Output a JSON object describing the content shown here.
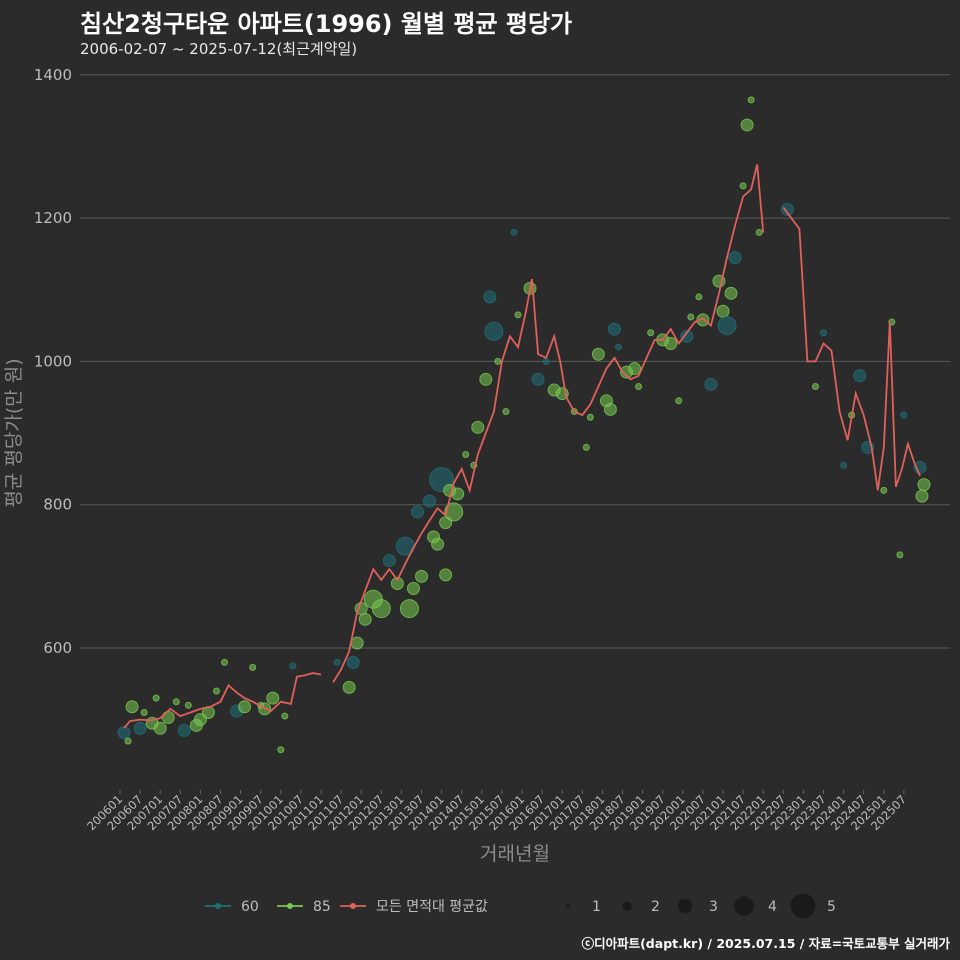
{
  "title": "침산2청구타운 아파트(1996) 월별 평균 평당가",
  "subtitle": "2006-02-07 ~ 2025-07-12(최근계약일)",
  "caption": "ⓒ디아파트(dapt.kr) / 2025.07.15 / 자료=국토교통부 실거래가",
  "colors": {
    "background": "#2b2b2b",
    "grid": "#5a5a5a",
    "series_60": "#1f6f78",
    "series_85": "#78c850",
    "series_avg": "#e0605a",
    "size_legend": "#1a1a1a"
  },
  "chart_data": {
    "type": "line",
    "xlabel": "거래년월",
    "ylabel": "평균 평당가(만 원)",
    "ylim": [
      400,
      1400
    ],
    "yticks": [
      600,
      800,
      1000,
      1200,
      1400
    ],
    "xlim": [
      2006.0,
      2025.6
    ],
    "xticks": [
      "200601",
      "200607",
      "200701",
      "200707",
      "200801",
      "200807",
      "200901",
      "200907",
      "201001",
      "201007",
      "201101",
      "201107",
      "201201",
      "201207",
      "201301",
      "201307",
      "201401",
      "201407",
      "201501",
      "201507",
      "201601",
      "201607",
      "201701",
      "201707",
      "201801",
      "201807",
      "201901",
      "201907",
      "202001",
      "202007",
      "202101",
      "202107",
      "202201",
      "202207",
      "202301",
      "202307",
      "202401",
      "202407",
      "202501",
      "202507"
    ],
    "legend": {
      "series": [
        {
          "label": "60",
          "color": "#1f6f78"
        },
        {
          "label": "85",
          "color": "#78c850"
        },
        {
          "label": "모든 면적대 평균값",
          "color": "#e0605a"
        }
      ],
      "sizes": [
        "1",
        "2",
        "3",
        "4",
        "5"
      ]
    },
    "avg_line": [
      [
        [
          2006.1,
          488
        ],
        [
          2006.25,
          498
        ],
        [
          2006.5,
          500
        ],
        [
          2006.75,
          499
        ],
        [
          2007.0,
          502
        ],
        [
          2007.25,
          515
        ],
        [
          2007.5,
          505
        ],
        [
          2007.75,
          510
        ],
        [
          2008.0,
          515
        ],
        [
          2008.25,
          518
        ],
        [
          2008.5,
          525
        ],
        [
          2008.7,
          548
        ],
        [
          2008.9,
          538
        ],
        [
          2009.1,
          530
        ],
        [
          2009.3,
          525
        ],
        [
          2009.5,
          519
        ],
        [
          2009.75,
          512
        ],
        [
          2010.0,
          525
        ],
        [
          2010.25,
          522
        ],
        [
          2010.4,
          560
        ],
        [
          2010.6,
          562
        ],
        [
          2010.8,
          565
        ],
        [
          2011.0,
          563
        ]
      ],
      [
        [
          2011.3,
          552
        ],
        [
          2011.5,
          570
        ],
        [
          2011.7,
          595
        ],
        [
          2011.9,
          650
        ],
        [
          2012.1,
          680
        ],
        [
          2012.3,
          710
        ],
        [
          2012.5,
          695
        ],
        [
          2012.7,
          710
        ],
        [
          2012.9,
          695
        ],
        [
          2013.1,
          718
        ],
        [
          2013.3,
          740
        ],
        [
          2013.5,
          760
        ],
        [
          2013.7,
          778
        ],
        [
          2013.9,
          795
        ],
        [
          2014.1,
          785
        ],
        [
          2014.3,
          830
        ],
        [
          2014.5,
          850
        ],
        [
          2014.7,
          820
        ],
        [
          2014.9,
          870
        ],
        [
          2015.1,
          900
        ],
        [
          2015.3,
          930
        ],
        [
          2015.5,
          1000
        ],
        [
          2015.7,
          1035
        ],
        [
          2015.9,
          1020
        ],
        [
          2016.1,
          1070
        ],
        [
          2016.25,
          1115
        ],
        [
          2016.4,
          1010
        ],
        [
          2016.6,
          1005
        ],
        [
          2016.8,
          1035
        ],
        [
          2016.95,
          1000
        ],
        [
          2017.1,
          950
        ],
        [
          2017.3,
          930
        ],
        [
          2017.5,
          925
        ],
        [
          2017.7,
          940
        ],
        [
          2017.9,
          965
        ],
        [
          2018.1,
          990
        ],
        [
          2018.3,
          1005
        ],
        [
          2018.5,
          985
        ],
        [
          2018.7,
          975
        ],
        [
          2018.9,
          980
        ],
        [
          2019.1,
          1005
        ],
        [
          2019.3,
          1030
        ],
        [
          2019.5,
          1030
        ],
        [
          2019.7,
          1045
        ],
        [
          2019.9,
          1025
        ],
        [
          2020.1,
          1040
        ],
        [
          2020.3,
          1055
        ],
        [
          2020.5,
          1060
        ],
        [
          2020.7,
          1050
        ],
        [
          2020.9,
          1095
        ],
        [
          2021.1,
          1145
        ],
        [
          2021.3,
          1190
        ],
        [
          2021.5,
          1230
        ],
        [
          2021.7,
          1240
        ],
        [
          2021.85,
          1275
        ],
        [
          2022.0,
          1180
        ]
      ],
      [
        [
          2022.5,
          1215
        ],
        [
          2022.7,
          1200
        ],
        [
          2022.9,
          1185
        ],
        [
          2023.1,
          1000
        ],
        [
          2023.3,
          1000
        ],
        [
          2023.5,
          1025
        ],
        [
          2023.7,
          1015
        ],
        [
          2023.9,
          930
        ],
        [
          2024.1,
          890
        ],
        [
          2024.3,
          955
        ],
        [
          2024.5,
          925
        ],
        [
          2024.7,
          880
        ],
        [
          2024.85,
          820
        ],
        [
          2025.0,
          880
        ],
        [
          2025.15,
          1055
        ],
        [
          2025.3,
          825
        ],
        [
          2025.45,
          850
        ],
        [
          2025.6,
          885
        ],
        [
          2025.75,
          860
        ],
        [
          2025.9,
          840
        ]
      ]
    ],
    "points": [
      [
        2006.1,
        482,
        2,
        "60"
      ],
      [
        2006.2,
        470,
        1,
        "85"
      ],
      [
        2006.3,
        518,
        2,
        "85"
      ],
      [
        2006.5,
        488,
        2,
        "60"
      ],
      [
        2006.6,
        510,
        1,
        "85"
      ],
      [
        2006.8,
        495,
        2,
        "85"
      ],
      [
        2006.9,
        530,
        1,
        "85"
      ],
      [
        2007.0,
        488,
        2,
        "85"
      ],
      [
        2007.2,
        503,
        2,
        "85"
      ],
      [
        2007.4,
        525,
        1,
        "85"
      ],
      [
        2007.6,
        485,
        2,
        "60"
      ],
      [
        2007.7,
        520,
        1,
        "85"
      ],
      [
        2007.9,
        492,
        2,
        "85"
      ],
      [
        2008.0,
        500,
        2,
        "85"
      ],
      [
        2008.2,
        510,
        2,
        "85"
      ],
      [
        2008.4,
        540,
        1,
        "85"
      ],
      [
        2008.6,
        580,
        1,
        "85"
      ],
      [
        2008.9,
        512,
        2,
        "60"
      ],
      [
        2009.1,
        518,
        2,
        "85"
      ],
      [
        2009.3,
        573,
        1,
        "85"
      ],
      [
        2009.5,
        520,
        1,
        "85"
      ],
      [
        2009.6,
        515,
        2,
        "85"
      ],
      [
        2009.8,
        530,
        2,
        "85"
      ],
      [
        2010.0,
        458,
        1,
        "85"
      ],
      [
        2010.1,
        505,
        1,
        "85"
      ],
      [
        2010.3,
        575,
        1,
        "60"
      ],
      [
        2011.4,
        580,
        1,
        "60"
      ],
      [
        2011.7,
        545,
        2,
        "85"
      ],
      [
        2011.8,
        580,
        2,
        "60"
      ],
      [
        2011.9,
        607,
        2,
        "85"
      ],
      [
        2012.0,
        655,
        2,
        "85"
      ],
      [
        2012.1,
        640,
        2,
        "85"
      ],
      [
        2012.3,
        668,
        3,
        "85"
      ],
      [
        2012.5,
        655,
        3,
        "85"
      ],
      [
        2012.7,
        722,
        2,
        "60"
      ],
      [
        2012.9,
        690,
        2,
        "85"
      ],
      [
        2013.1,
        742,
        3,
        "60"
      ],
      [
        2013.2,
        655,
        3,
        "85"
      ],
      [
        2013.3,
        683,
        2,
        "85"
      ],
      [
        2013.4,
        790,
        2,
        "60"
      ],
      [
        2013.5,
        700,
        2,
        "85"
      ],
      [
        2013.7,
        805,
        2,
        "60"
      ],
      [
        2013.8,
        755,
        2,
        "85"
      ],
      [
        2013.9,
        745,
        2,
        "85"
      ],
      [
        2014.0,
        835,
        4,
        "60"
      ],
      [
        2014.1,
        775,
        2,
        "85"
      ],
      [
        2014.2,
        820,
        2,
        "85"
      ],
      [
        2014.3,
        790,
        3,
        "85"
      ],
      [
        2014.4,
        815,
        2,
        "85"
      ],
      [
        2014.1,
        702,
        2,
        "85"
      ],
      [
        2014.6,
        870,
        1,
        "85"
      ],
      [
        2014.8,
        855,
        1,
        "85"
      ],
      [
        2014.9,
        908,
        2,
        "85"
      ],
      [
        2015.1,
        975,
        2,
        "85"
      ],
      [
        2015.2,
        1090,
        2,
        "60"
      ],
      [
        2015.3,
        1042,
        3,
        "60"
      ],
      [
        2015.4,
        1000,
        1,
        "85"
      ],
      [
        2015.6,
        930,
        1,
        "85"
      ],
      [
        2015.8,
        1180,
        1,
        "60"
      ],
      [
        2015.9,
        1065,
        1,
        "85"
      ],
      [
        2016.2,
        1102,
        2,
        "85"
      ],
      [
        2016.4,
        975,
        2,
        "60"
      ],
      [
        2016.6,
        1000,
        1,
        "60"
      ],
      [
        2016.8,
        960,
        2,
        "85"
      ],
      [
        2017.0,
        955,
        2,
        "85"
      ],
      [
        2017.3,
        930,
        1,
        "85"
      ],
      [
        2017.6,
        880,
        1,
        "85"
      ],
      [
        2017.7,
        922,
        1,
        "85"
      ],
      [
        2017.9,
        1010,
        2,
        "85"
      ],
      [
        2018.1,
        945,
        2,
        "85"
      ],
      [
        2018.2,
        933,
        2,
        "85"
      ],
      [
        2018.3,
        1045,
        2,
        "60"
      ],
      [
        2018.4,
        1020,
        1,
        "60"
      ],
      [
        2018.6,
        985,
        2,
        "85"
      ],
      [
        2018.8,
        990,
        2,
        "85"
      ],
      [
        2018.9,
        965,
        1,
        "85"
      ],
      [
        2019.2,
        1040,
        1,
        "85"
      ],
      [
        2019.5,
        1030,
        2,
        "85"
      ],
      [
        2019.7,
        1025,
        2,
        "85"
      ],
      [
        2019.9,
        945,
        1,
        "85"
      ],
      [
        2020.1,
        1035,
        2,
        "60"
      ],
      [
        2020.2,
        1062,
        1,
        "85"
      ],
      [
        2020.4,
        1090,
        1,
        "85"
      ],
      [
        2020.5,
        1058,
        2,
        "85"
      ],
      [
        2020.7,
        968,
        2,
        "60"
      ],
      [
        2020.9,
        1112,
        2,
        "85"
      ],
      [
        2021.0,
        1070,
        2,
        "85"
      ],
      [
        2021.1,
        1050,
        3,
        "60"
      ],
      [
        2021.2,
        1095,
        2,
        "85"
      ],
      [
        2021.3,
        1145,
        2,
        "60"
      ],
      [
        2021.5,
        1245,
        1,
        "85"
      ],
      [
        2021.6,
        1330,
        2,
        "85"
      ],
      [
        2021.7,
        1365,
        1,
        "85"
      ],
      [
        2021.9,
        1180,
        1,
        "85"
      ],
      [
        2022.6,
        1212,
        2,
        "60"
      ],
      [
        2023.3,
        965,
        1,
        "85"
      ],
      [
        2023.5,
        1040,
        1,
        "60"
      ],
      [
        2024.0,
        855,
        1,
        "60"
      ],
      [
        2024.2,
        925,
        1,
        "85"
      ],
      [
        2024.4,
        980,
        2,
        "60"
      ],
      [
        2024.6,
        880,
        2,
        "60"
      ],
      [
        2025.0,
        820,
        1,
        "85"
      ],
      [
        2025.2,
        1055,
        1,
        "85"
      ],
      [
        2025.4,
        730,
        1,
        "85"
      ],
      [
        2025.5,
        925,
        1,
        "60"
      ],
      [
        2025.9,
        852,
        2,
        "60"
      ],
      [
        2025.95,
        812,
        2,
        "85"
      ],
      [
        2026.0,
        828,
        2,
        "85"
      ]
    ]
  }
}
